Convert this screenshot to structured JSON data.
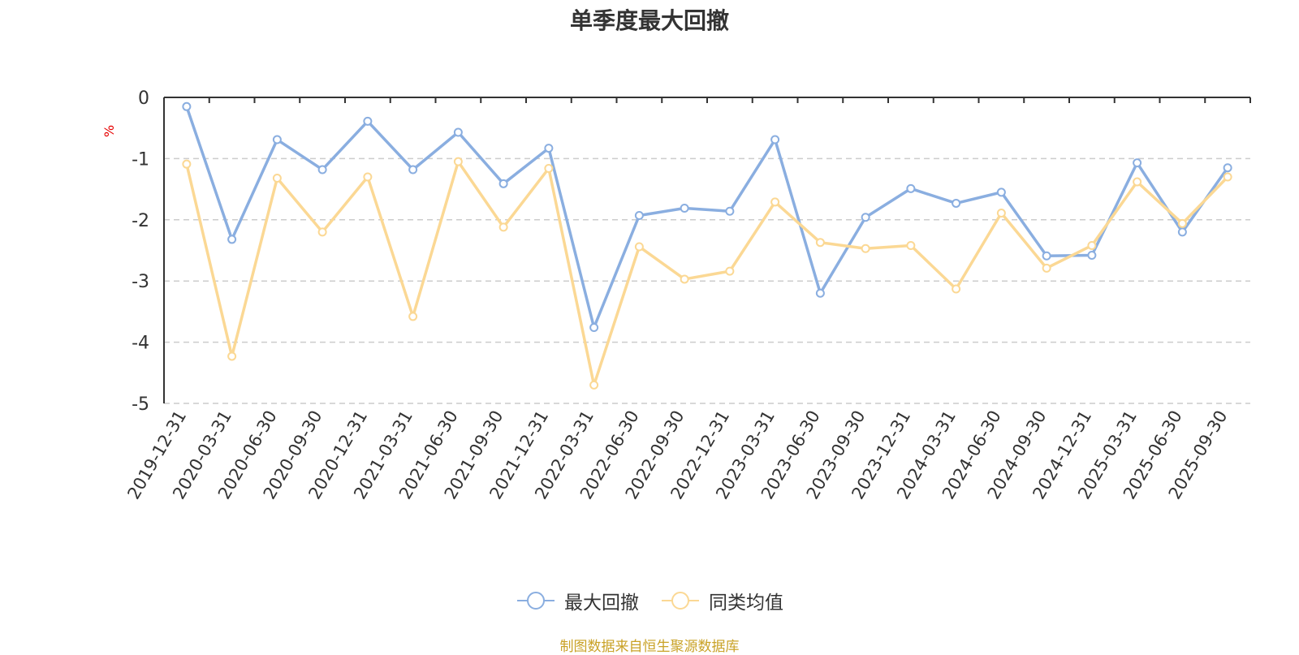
{
  "title": "单季度最大回撤",
  "y_unit": "%",
  "source": "制图数据来自恒生聚源数据库",
  "colors": {
    "series1": "#8aaee0",
    "series2": "#fbd894",
    "grid": "#cccccc",
    "axis": "#333333",
    "unit": "#e60000",
    "source": "#c9a227"
  },
  "chart_data": {
    "type": "line",
    "title": "单季度最大回撤",
    "ylabel": "%",
    "ylim": [
      -5,
      0
    ],
    "yticks": [
      0,
      -1,
      -2,
      -3,
      -4,
      -5
    ],
    "grid": "horizontal-dashed",
    "legend_position": "bottom",
    "x": [
      "2019-12-31",
      "2020-03-31",
      "2020-06-30",
      "2020-09-30",
      "2020-12-31",
      "2021-03-31",
      "2021-06-30",
      "2021-09-30",
      "2021-12-31",
      "2022-03-31",
      "2022-06-30",
      "2022-09-30",
      "2022-12-31",
      "2023-03-31",
      "2023-06-30",
      "2023-09-30",
      "2023-12-31",
      "2024-03-31",
      "2024-06-30",
      "2024-09-30",
      "2024-12-31",
      "2025-03-31",
      "2025-06-30",
      "2025-09-30"
    ],
    "series": [
      {
        "name": "最大回撤",
        "color": "#8aaee0",
        "values": [
          -0.15,
          -2.32,
          -0.69,
          -1.18,
          -0.39,
          -1.18,
          -0.57,
          -1.41,
          -0.83,
          -3.76,
          -1.93,
          -1.81,
          -1.86,
          -0.69,
          -3.2,
          -1.96,
          -1.49,
          -1.73,
          -1.55,
          -2.59,
          -2.58,
          -1.07,
          -2.2,
          -1.15
        ]
      },
      {
        "name": "同类均值",
        "color": "#fbd894",
        "values": [
          -1.09,
          -4.23,
          -1.32,
          -2.2,
          -1.3,
          -3.58,
          -1.05,
          -2.12,
          -1.16,
          -4.7,
          -2.44,
          -2.97,
          -2.84,
          -1.71,
          -2.37,
          -2.47,
          -2.42,
          -3.13,
          -1.89,
          -2.79,
          -2.42,
          -1.38,
          -2.06,
          -1.3
        ]
      }
    ]
  }
}
